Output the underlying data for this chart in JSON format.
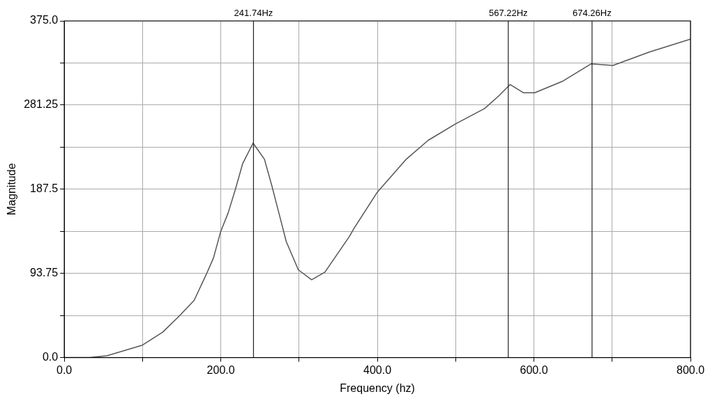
{
  "chart_data": {
    "type": "line",
    "xlabel": "Frequency (hz)",
    "ylabel": "Magnitude",
    "series": [
      {
        "color": "#555555",
        "x": [
          0,
          32.8,
          54.5,
          100,
          125.7,
          147.3,
          165.9,
          181.4,
          190.6,
          199.9,
          209.2,
          218.5,
          227.8,
          241.2,
          255.7,
          265,
          274.3,
          283.6,
          299,
          316,
          333,
          364,
          370,
          400,
          437,
          465,
          500,
          537,
          555.6,
          569.5,
          586.8,
          601,
          636,
          673.2,
          701,
          747.4,
          800
        ],
        "values": [
          0,
          0,
          2,
          13.9,
          28.3,
          46.6,
          63.7,
          92.6,
          110.9,
          140.5,
          160.7,
          187,
          215.7,
          238.9,
          221,
          192,
          160.7,
          129.2,
          97.8,
          86.7,
          95.2,
          134.5,
          143.7,
          184.3,
          221,
          242,
          260.3,
          277.4,
          291.8,
          304.1,
          294.9,
          294.9,
          307.5,
          327.2,
          325.4,
          340.3,
          354.7
        ]
      }
    ],
    "xlim": [
      0,
      800
    ],
    "ylim": [
      0,
      375
    ],
    "xticks": [
      {
        "value": 0,
        "label": "0.0"
      },
      {
        "value": 100,
        "label": null
      },
      {
        "value": 200,
        "label": "200.0"
      },
      {
        "value": 300,
        "label": null
      },
      {
        "value": 400,
        "label": "400.0"
      },
      {
        "value": 500,
        "label": null
      },
      {
        "value": 600,
        "label": "600.0"
      },
      {
        "value": 700,
        "label": null
      },
      {
        "value": 800,
        "label": "800.0"
      }
    ],
    "yticks": [
      {
        "value": 0,
        "label": "0.0"
      },
      {
        "value": 46.875,
        "label": null
      },
      93.75,
      {
        "value": 140.625,
        "label": null
      },
      187.5,
      {
        "value": 234.375,
        "label": null
      },
      281.25,
      {
        "value": 328.125,
        "label": null
      },
      {
        "value": 375,
        "label": "375.0"
      }
    ],
    "ref_lines": [
      {
        "axis": "x",
        "value": 241.74,
        "label": "241.74Hz",
        "color": "#222222"
      },
      {
        "axis": "x",
        "value": 567.22,
        "label": "567.22Hz",
        "color": "#222222"
      },
      {
        "axis": "x",
        "value": 674.26,
        "label": "674.26Hz",
        "color": "#222222"
      }
    ],
    "grid": true,
    "legend": false,
    "marker": "none",
    "line_style": "solid"
  }
}
